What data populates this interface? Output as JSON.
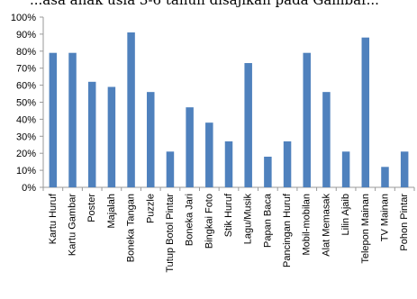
{
  "caption_fragment": "...asa anak usia 3-6 tahun disajikan pada Gambar...",
  "chart_data": {
    "type": "bar",
    "categories": [
      "Kartu Huruf",
      "Kartu Gambar",
      "Poster",
      "Majalah",
      "Boneka Tangan",
      "Puzzle",
      "Tutup Botol Pintar",
      "Boneka Jari",
      "Bingkai Foto",
      "Stik Huruf",
      "Lagu/Musik",
      "Papan Baca",
      "Pancingan Huruf",
      "Mobil-mobilan",
      "Alat Memasak",
      "Lilin Ajaib",
      "Telepon Mainan",
      "TV Mainan",
      "Pohon Pintar"
    ],
    "values": [
      79,
      79,
      62,
      59,
      91,
      56,
      21,
      47,
      38,
      27,
      73,
      18,
      27,
      79,
      56,
      21,
      88,
      12,
      21
    ],
    "title": "",
    "xlabel": "",
    "ylabel": "",
    "ylim": [
      0,
      100
    ],
    "yticks": [
      "0%",
      "10%",
      "20%",
      "30%",
      "40%",
      "50%",
      "60%",
      "70%",
      "80%",
      "90%",
      "100%"
    ],
    "grid": false,
    "bar_color": "#4f81bd",
    "axis_color": "#999999"
  }
}
